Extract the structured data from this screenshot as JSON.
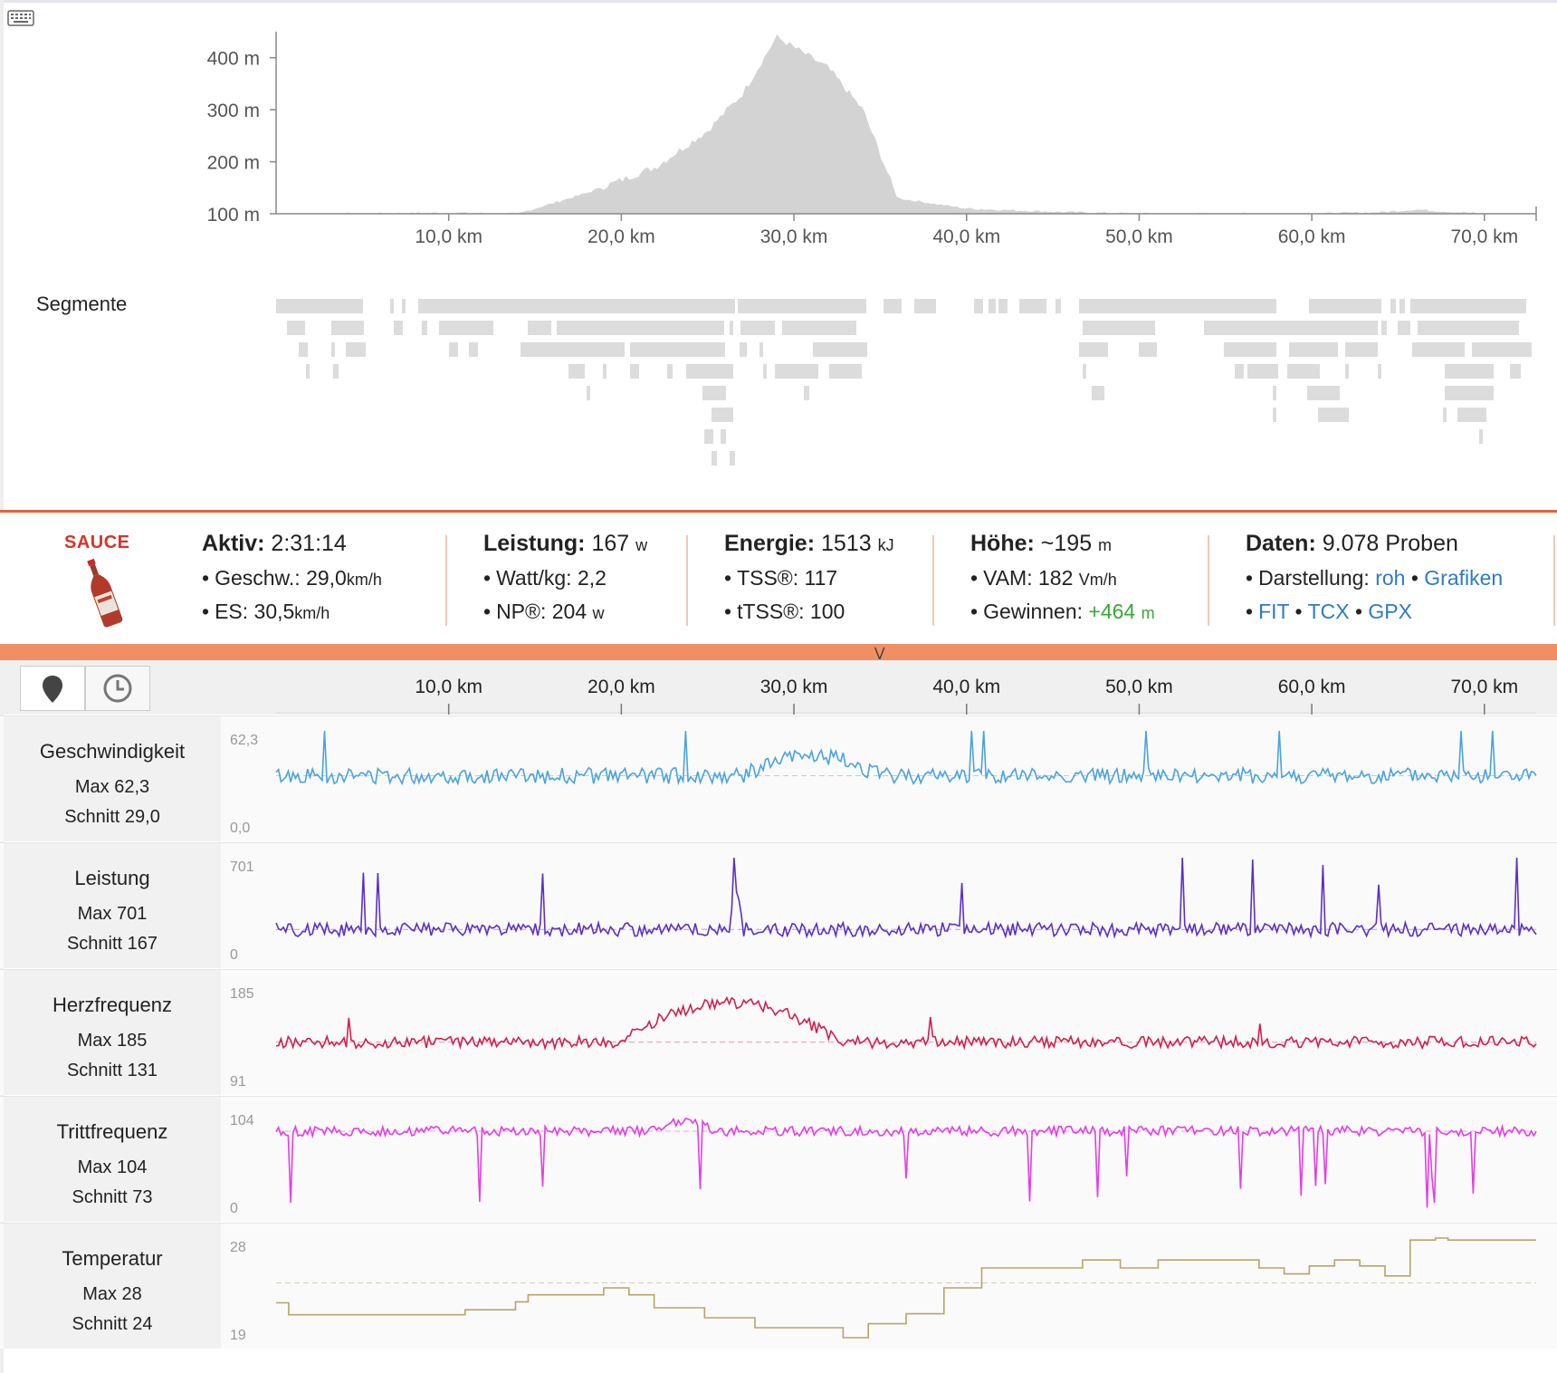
{
  "elevation": {
    "y_ticks": [
      "400 m",
      "300 m",
      "200 m",
      "100 m"
    ],
    "x_ticks": [
      "10,0 km",
      "20,0 km",
      "30,0 km",
      "40,0 km",
      "50,0 km",
      "60,0 km",
      "70,0 km"
    ]
  },
  "segments": {
    "label": "Segmente"
  },
  "stats": {
    "logo_text": "SAUCE",
    "aktiv": {
      "label": "Aktiv:",
      "value": "2:31:14",
      "speed_label": "Geschw.:",
      "speed_value": "29,0",
      "speed_unit": "km/h",
      "es_label": "ES:",
      "es_value": "30,5",
      "es_unit": "km/h"
    },
    "leistung": {
      "label": "Leistung:",
      "value": "167",
      "unit": "w",
      "wkg_label": "Watt/kg:",
      "wkg_value": "2,2",
      "np_label": "NP®:",
      "np_value": "204",
      "np_unit": "w"
    },
    "energie": {
      "label": "Energie:",
      "value": "1513",
      "unit": "kJ",
      "tss_label": "TSS®:",
      "tss_value": "117",
      "ttss_label": "tTSS®:",
      "ttss_value": "100"
    },
    "hoehe": {
      "label": "Höhe:",
      "value": "~195",
      "unit": "m",
      "vam_label": "VAM:",
      "vam_value": "182",
      "vam_unit": "Vm/h",
      "gain_label": "Gewinnen:",
      "gain_value": "+464",
      "gain_unit": "m"
    },
    "daten": {
      "label": "Daten:",
      "value": "9.078 Proben",
      "darst_label": "Darstellung:",
      "roh": "roh",
      "grafiken": "Grafiken",
      "fit": "FIT",
      "tcx": "TCX",
      "gpx": "GPX"
    }
  },
  "chart_axis": {
    "x_ticks": [
      "10,0 km",
      "20,0 km",
      "30,0 km",
      "40,0 km",
      "50,0 km",
      "60,0 km",
      "70,0 km"
    ]
  },
  "streams": [
    {
      "name": "Geschwindigkeit",
      "max": "Max 62,3",
      "avg": "Schnitt 29,0",
      "ymax": "62,3",
      "ymin": "0,0",
      "color": "#4aa3df"
    },
    {
      "name": "Leistung",
      "max": "Max 701",
      "avg": "Schnitt 167",
      "ymax": "701",
      "ymin": "0",
      "color": "#5b2fc9"
    },
    {
      "name": "Herzfrequenz",
      "max": "Max 185",
      "avg": "Schnitt 131",
      "ymax": "185",
      "ymin": "91",
      "color": "#d01f4b"
    },
    {
      "name": "Trittfrequenz",
      "max": "Max 104",
      "avg": "Schnitt 73",
      "ymax": "104",
      "ymin": "0",
      "color": "#e53ce8"
    },
    {
      "name": "Temperatur",
      "max": "Max 28",
      "avg": "Schnitt 24",
      "ymax": "28",
      "ymin": "19",
      "color": "#b6a46a"
    }
  ],
  "chart_data": {
    "type": "area",
    "title": "",
    "xlabel": "",
    "ylabel": "",
    "x": [
      0,
      5,
      10,
      14,
      18,
      22,
      25,
      27,
      29,
      30,
      32,
      34,
      36,
      40,
      45,
      50,
      55,
      60,
      64,
      66,
      70,
      73
    ],
    "values": [
      100,
      100,
      102,
      100,
      140,
      190,
      260,
      330,
      440,
      420,
      380,
      300,
      130,
      110,
      104,
      100,
      100,
      100,
      103,
      108,
      100,
      98
    ],
    "xlim": [
      0,
      73
    ],
    "ylim": [
      100,
      450
    ],
    "grid": false
  }
}
